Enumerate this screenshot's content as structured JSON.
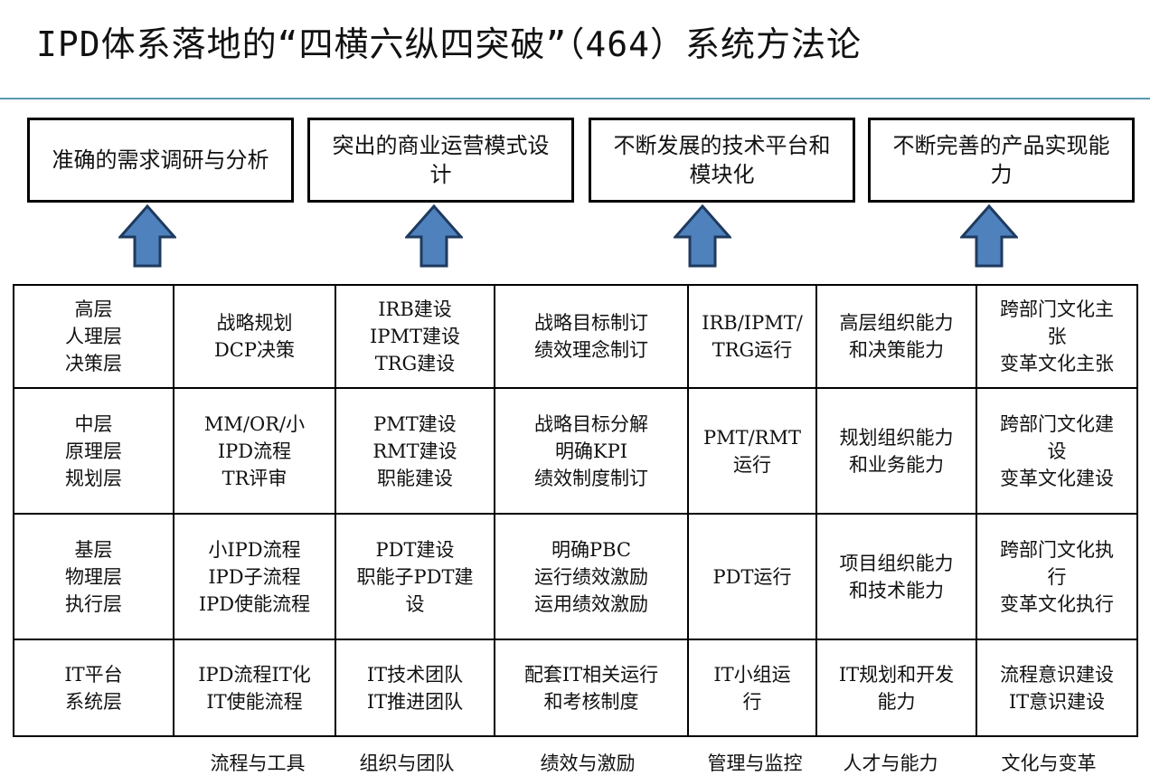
{
  "title": "IPD体系落地的“四横六纵四突破”（464）系统方法论",
  "accent_color": "#5b97b0",
  "arrow_color": "#4f81bd",
  "breakthroughs": [
    "准确的需求调研与分析",
    "突出的商业运营模式设计",
    "不断发展的技术平台和模块化",
    "不断完善的产品实现能力"
  ],
  "rows": [
    [
      "高层\n人理层\n决策层",
      "战略规划\nDCP决策",
      "IRB建设\nIPMT建设\nTRG建设",
      "战略目标制订\n绩效理念制订",
      "IRB/IPMT/\nTRG运行",
      "高层组织能力\n和决策能力",
      "跨部门文化主\n张\n变革文化主张"
    ],
    [
      "中层\n原理层\n规划层",
      "MM/OR/小\nIPD流程\nTR评审",
      "PMT建设\nRMT建设\n职能建设",
      "战略目标分解\n明确KPI\n绩效制度制订",
      "PMT/RMT\n运行",
      "规划组织能力\n和业务能力",
      "跨部门文化建\n设\n变革文化建设"
    ],
    [
      "基层\n物理层\n执行层",
      "小IPD流程\nIPD子流程\nIPD使能流程",
      "PDT建设\n职能子PDT建\n设",
      "明确PBC\n运行绩效激励\n运用绩效激励",
      "PDT运行",
      "项目组织能力\n和技术能力",
      "跨部门文化执\n行\n变革文化执行"
    ],
    [
      "IT平台\n系统层",
      "IPD流程IT化\nIT使能流程",
      "IT技术团队\nIT推进团队",
      "配套IT相关运行\n和考核制度",
      "IT小组运\n行",
      "IT规划和开发\n能力",
      "流程意识建设\nIT意识建设"
    ]
  ],
  "columns": [
    "流程与工具",
    "组织与团队",
    "绩效与激励",
    "管理与监控",
    "人才与能力",
    "文化与变革"
  ]
}
